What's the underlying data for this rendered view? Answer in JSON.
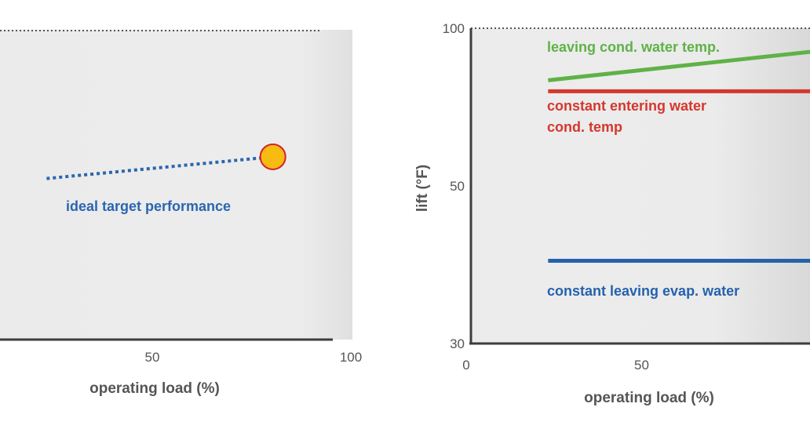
{
  "chart_data": [
    {
      "type": "line",
      "title": "",
      "xlabel": "operating load (%)",
      "ylabel": "",
      "xlim": [
        0,
        100
      ],
      "xticks": [
        {
          "value": 50,
          "label": "50"
        },
        {
          "value": 100,
          "label": "100"
        }
      ],
      "grid": false,
      "series": [
        {
          "name": "ideal target performance",
          "style": "dotted",
          "color": "#2a66b0",
          "x": [
            14,
            82
          ],
          "y": [
            0.52,
            0.59
          ]
        }
      ],
      "annotations": [
        {
          "type": "marker",
          "shape": "circle",
          "fill": "#f8bb12",
          "stroke": "#d2232a",
          "x": 82,
          "y": 0.59
        }
      ]
    },
    {
      "type": "line",
      "title": "",
      "xlabel": "operating load (%)",
      "ylabel": "lift (°F)",
      "xlim": [
        0,
        100
      ],
      "ylim": [
        30,
        100
      ],
      "xticks": [
        {
          "value": 0,
          "label": "0"
        },
        {
          "value": 50,
          "label": "50"
        }
      ],
      "yticks": [
        {
          "value": 30,
          "label": "30"
        },
        {
          "value": 50,
          "label": "50"
        },
        {
          "value": 100,
          "label": "100"
        }
      ],
      "grid": false,
      "series": [
        {
          "name": "leaving cond. water temp.",
          "color": "#5fb246",
          "x": [
            22,
            100
          ],
          "y": [
            83.5,
            92.5
          ]
        },
        {
          "name": "constant entering water cond. temp",
          "label_lines": [
            "constant entering water",
            "cond. temp"
          ],
          "color": "#d5372d",
          "x": [
            22,
            100
          ],
          "y": [
            80,
            80
          ]
        },
        {
          "name": "constant leaving evap. water",
          "color": "#2462ad",
          "x": [
            22,
            100
          ],
          "y": [
            40.5,
            40.5
          ]
        }
      ]
    }
  ]
}
